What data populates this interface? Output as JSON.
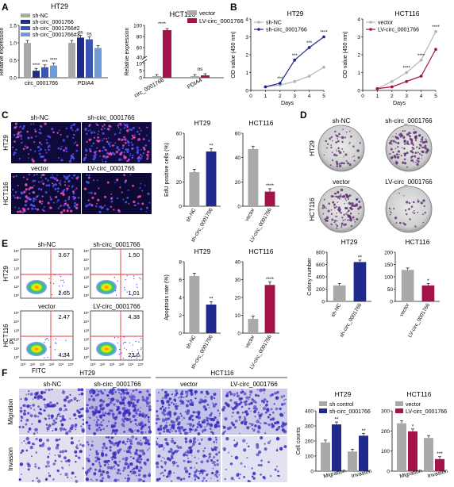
{
  "panels": {
    "A": {
      "letter": "A",
      "left": {
        "title": "HT29",
        "ylabel": "Relative expression",
        "yticks": [
          "0.0",
          "0.5",
          "1.0",
          "1.5"
        ],
        "xcats": [
          "circ_0001766",
          "PDIA4"
        ],
        "legend": [
          "sh-NC",
          "sh-circ_0001766",
          "sh-circ_0001766#2",
          "sh-circ_0001766#3"
        ],
        "sig": [
          "****",
          "***",
          "****",
          "ns",
          "ns"
        ]
      },
      "right": {
        "title": "HCT116",
        "ylabel": "Relative expression",
        "yticks": [
          "0",
          "5",
          "10",
          "40",
          "60",
          "80",
          "100"
        ],
        "xcats": [
          "circ_0001766",
          "PDIA4"
        ],
        "legend": [
          "vector",
          "LV-circ_0001766"
        ],
        "sig": [
          "****",
          "ns"
        ]
      }
    },
    "B": {
      "letter": "B",
      "left": {
        "title": "HT29",
        "ylabel": "OD value (450 nm)",
        "xlabel": "Days",
        "yticks": [
          "0",
          "1",
          "2",
          "3",
          "4"
        ],
        "xticks": [
          "0",
          "1",
          "2",
          "3",
          "4",
          "5"
        ],
        "legend": [
          "sh-NC",
          "sh-circ_0001766"
        ],
        "sig": [
          "***",
          "***",
          "***",
          "****"
        ]
      },
      "right": {
        "title": "HCT116",
        "ylabel": "OD value (450 nm)",
        "xlabel": "Days",
        "yticks": [
          "0",
          "1",
          "2",
          "3",
          "4"
        ],
        "xticks": [
          "0",
          "1",
          "2",
          "3",
          "4",
          "5"
        ],
        "legend": [
          "vector",
          "LV-circ_0001766"
        ],
        "sig": [
          "****",
          "****",
          "****"
        ]
      }
    },
    "C": {
      "letter": "C",
      "img_labels": {
        "top_left": "sh-NC",
        "top_right": "sh-circ_0001766",
        "mid_left": "vector",
        "mid_right": "LV-circ_0001766",
        "row1": "HT29",
        "row2": "HCT116"
      },
      "left": {
        "title": "HT29",
        "ylabel": "EdU positive cells (%)",
        "yticks": [
          "0",
          "20",
          "40",
          "60"
        ],
        "xcats": [
          "sh-NC",
          "sh-circ_0001766"
        ],
        "sig": "**"
      },
      "right": {
        "title": "HCT116",
        "yticks": [
          "0",
          "20",
          "40",
          "60"
        ],
        "xcats": [
          "vector",
          "LV-circ_0001766"
        ],
        "sig": "****"
      }
    },
    "D": {
      "letter": "D",
      "img_labels": {
        "top_left": "sh-NC",
        "top_right": "sh-circ_0001766",
        "mid_left": "vector",
        "mid_right": "LV-circ_0001766",
        "row1": "HT29",
        "row2": "HCT116"
      },
      "left": {
        "title": "HT29",
        "ylabel": "Colony number",
        "yticks": [
          "0",
          "200",
          "400",
          "600",
          "800"
        ],
        "xcats": [
          "sh-NC",
          "sh-circ_0001766"
        ],
        "sig": "**"
      },
      "right": {
        "title": "HCT116",
        "yticks": [
          "0",
          "50",
          "100",
          "150",
          "200"
        ],
        "xcats": [
          "vector",
          "LV-circ_0001766"
        ],
        "sig": "*"
      }
    },
    "E": {
      "letter": "E",
      "flow": {
        "col1": "sh-NC",
        "col2": "sh-circ_0001766",
        "col3": "vector",
        "col4": "LV-circ_0001766",
        "row1": "HT29",
        "row2": "HCT116",
        "xaxis": "FITC",
        "yaxis": "PI",
        "q": {
          "a": "3.67",
          "b": "2.65",
          "c": "1.50",
          "d": "1.01",
          "e": "2.47",
          "f": "4.34",
          "g": "4.38",
          "h": "23.6"
        },
        "xticks": [
          "10⁰",
          "10¹",
          "10²",
          "10³",
          "10⁴",
          "10⁵"
        ],
        "yticks": [
          "10⁵",
          "10⁴",
          "10³",
          "10²",
          "10¹",
          "10⁰"
        ]
      },
      "left": {
        "title": "HT29",
        "ylabel": "Apoptosis rate (%)",
        "yticks": [
          "0",
          "2",
          "4",
          "6",
          "8"
        ],
        "xcats": [
          "sh-NC",
          "sh-circ_0001766"
        ],
        "sig": "**"
      },
      "right": {
        "title": "HCT116",
        "yticks": [
          "0",
          "10",
          "20",
          "30",
          "40"
        ],
        "xcats": [
          "vector",
          "LV-circ_0001766"
        ],
        "sig": "****"
      }
    },
    "F": {
      "letter": "F",
      "img_labels": {
        "g1": "HT29",
        "g2": "HCT116",
        "c1": "sh-NC",
        "c2": "sh-circ_0001766",
        "c3": "vector",
        "c4": "LV-circ_0001766",
        "r1": "Migration",
        "r2": "Invasion"
      },
      "left": {
        "title": "HT29",
        "ylabel": "Cell counts",
        "yticks": [
          "0",
          "100",
          "200",
          "300",
          "400"
        ],
        "legend": [
          "sh control",
          "sh-circ_0001766"
        ],
        "xcats": [
          "Migration",
          "Invasion"
        ],
        "sig": [
          "**",
          "**"
        ]
      },
      "right": {
        "title": "HCT116",
        "yticks": [
          "0",
          "100",
          "200",
          "300"
        ],
        "legend": [
          "vector",
          "LV-circ_0001766"
        ],
        "xcats": [
          "Migration",
          "Invasion"
        ],
        "sig": [
          "*",
          "***"
        ]
      }
    }
  },
  "colors": {
    "gray": "#a9a9a9",
    "navy": "#1f2a8c",
    "blue2": "#3a55b4",
    "blue3": "#6f9bd6",
    "crimson": "#a3134a",
    "dark": "#2a2a2a"
  },
  "chart_data": [
    {
      "type": "bar",
      "panel": "A-left",
      "title": "HT29",
      "ylabel": "Relative expression",
      "ylim": [
        0,
        1.5
      ],
      "categories": [
        "circ_0001766",
        "PDIA4"
      ],
      "series": [
        {
          "name": "sh-NC",
          "values": [
            1.0,
            1.0
          ]
        },
        {
          "name": "sh-circ_0001766",
          "values": [
            0.2,
            1.15
          ]
        },
        {
          "name": "sh-circ_0001766#2",
          "values": [
            0.3,
            1.1
          ]
        },
        {
          "name": "sh-circ_0001766#3",
          "values": [
            0.35,
            0.85
          ]
        }
      ]
    },
    {
      "type": "bar",
      "panel": "A-right",
      "title": "HCT116",
      "ylabel": "Relative expression",
      "categories": [
        "circ_0001766",
        "PDIA4"
      ],
      "series": [
        {
          "name": "vector",
          "values": [
            1.0,
            1.0
          ]
        },
        {
          "name": "LV-circ_0001766",
          "values": [
            85,
            1.5
          ]
        }
      ]
    },
    {
      "type": "line",
      "panel": "B-left",
      "title": "HT29",
      "xlabel": "Days",
      "ylabel": "OD value (450 nm)",
      "ylim": [
        0,
        4
      ],
      "x": [
        1,
        2,
        3,
        4,
        5
      ],
      "series": [
        {
          "name": "sh-NC",
          "values": [
            0.2,
            0.3,
            0.5,
            0.8,
            1.3
          ]
        },
        {
          "name": "sh-circ_0001766",
          "values": [
            0.2,
            0.4,
            1.7,
            2.4,
            3.0
          ]
        }
      ]
    },
    {
      "type": "line",
      "panel": "B-right",
      "title": "HCT116",
      "xlabel": "Days",
      "ylabel": "OD value (450 nm)",
      "ylim": [
        0,
        4
      ],
      "x": [
        1,
        2,
        3,
        4,
        5
      ],
      "series": [
        {
          "name": "vector",
          "values": [
            0.1,
            0.5,
            1.0,
            1.7,
            3.3
          ]
        },
        {
          "name": "LV-circ_0001766",
          "values": [
            0.1,
            0.2,
            0.5,
            0.8,
            2.3
          ]
        }
      ]
    },
    {
      "type": "bar",
      "panel": "C-left",
      "title": "HT29",
      "ylabel": "EdU positive cells (%)",
      "ylim": [
        0,
        60
      ],
      "categories": [
        "sh-NC",
        "sh-circ_0001766"
      ],
      "values": [
        28,
        45
      ]
    },
    {
      "type": "bar",
      "panel": "C-right",
      "title": "HCT116",
      "ylim": [
        0,
        60
      ],
      "categories": [
        "vector",
        "LV-circ_0001766"
      ],
      "values": [
        47,
        12
      ]
    },
    {
      "type": "bar",
      "panel": "D-left",
      "title": "HT29",
      "ylabel": "Colony number",
      "ylim": [
        0,
        800
      ],
      "categories": [
        "sh-NC",
        "sh-circ_0001766"
      ],
      "values": [
        260,
        640
      ]
    },
    {
      "type": "bar",
      "panel": "D-right",
      "title": "HCT116",
      "ylim": [
        0,
        200
      ],
      "categories": [
        "vector",
        "LV-circ_0001766"
      ],
      "values": [
        128,
        65
      ]
    },
    {
      "type": "bar",
      "panel": "E-left",
      "title": "HT29",
      "ylabel": "Apoptosis rate (%)",
      "ylim": [
        0,
        8
      ],
      "categories": [
        "sh-NC",
        "sh-circ_0001766"
      ],
      "values": [
        6.4,
        3.2
      ]
    },
    {
      "type": "bar",
      "panel": "E-right",
      "title": "HCT116",
      "ylim": [
        0,
        40
      ],
      "categories": [
        "vector",
        "LV-circ_0001766"
      ],
      "values": [
        8,
        27
      ]
    },
    {
      "type": "bar",
      "panel": "F-left",
      "title": "HT29",
      "ylabel": "Cell counts",
      "ylim": [
        0,
        400
      ],
      "categories": [
        "Migration",
        "Invasion"
      ],
      "series": [
        {
          "name": "sh control",
          "values": [
            190,
            130
          ]
        },
        {
          "name": "sh-circ_0001766",
          "values": [
            310,
            235
          ]
        }
      ]
    },
    {
      "type": "bar",
      "panel": "F-right",
      "title": "HCT116",
      "ylim": [
        0,
        300
      ],
      "categories": [
        "Migration",
        "Invasion"
      ],
      "series": [
        {
          "name": "vector",
          "values": [
            238,
            165
          ]
        },
        {
          "name": "LV-circ_0001766",
          "values": [
            198,
            60
          ]
        }
      ]
    }
  ]
}
